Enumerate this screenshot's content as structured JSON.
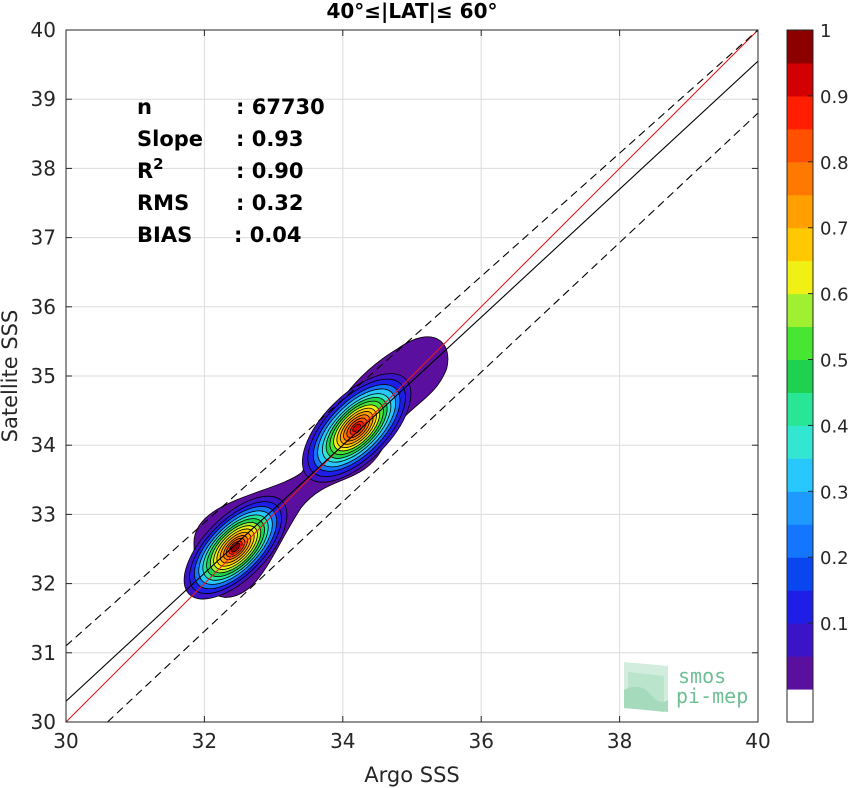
{
  "chart_data": {
    "type": "contour-density-scatter",
    "title": "40°≤|LAT|≤ 60°",
    "xlabel": "Argo SSS",
    "ylabel": "Satellite SSS",
    "xlim": [
      30,
      40
    ],
    "ylim": [
      30,
      40
    ],
    "xticks": [
      "30",
      "32",
      "34",
      "36",
      "38",
      "40"
    ],
    "yticks": [
      "30",
      "31",
      "32",
      "33",
      "34",
      "35",
      "36",
      "37",
      "38",
      "39",
      "40"
    ],
    "grid": true,
    "stats": [
      {
        "label": "n",
        "value": ": 67730"
      },
      {
        "label": "Slope",
        "value": ": 0.93"
      },
      {
        "label": "R",
        "sup": "2",
        "value": ": 0.90"
      },
      {
        "label": "RMS",
        "value": ": 0.32"
      },
      {
        "label": "BIAS",
        "value": ": 0.04"
      }
    ],
    "lines": [
      {
        "name": "one-to-one",
        "color": "#e41a1c",
        "style": "solid",
        "x": [
          30,
          40
        ],
        "y": [
          30,
          40
        ]
      },
      {
        "name": "regression",
        "color": "#000000",
        "style": "solid",
        "x": [
          30,
          40
        ],
        "y": [
          30.3,
          39.55
        ]
      },
      {
        "name": "upper-bound",
        "color": "#000000",
        "style": "dashed",
        "x": [
          30,
          40
        ],
        "y": [
          31.1,
          40.0
        ]
      },
      {
        "name": "lower-bound",
        "color": "#000000",
        "style": "dashed",
        "x": [
          30.6,
          40
        ],
        "y": [
          30.0,
          38.8
        ]
      }
    ],
    "density_peaks": [
      {
        "x": 32.45,
        "y": 32.52,
        "value": 1.0
      },
      {
        "x": 34.2,
        "y": 34.25,
        "value": 0.9
      }
    ],
    "colorbar": {
      "min": 0,
      "max": 1,
      "ticks": [
        "0.1",
        "0.2",
        "0.3",
        "0.4",
        "0.5",
        "0.6",
        "0.7",
        "0.8",
        "0.9",
        "1"
      ],
      "levels": [
        "#ffffff",
        "#5a0f9e",
        "#3c14c8",
        "#1e1ee6",
        "#0a46f0",
        "#1476ff",
        "#1e9aff",
        "#28c8ff",
        "#32e6d2",
        "#28e696",
        "#1ed250",
        "#46e632",
        "#a0f032",
        "#f0f014",
        "#ffc800",
        "#ffa000",
        "#ff7800",
        "#ff5000",
        "#ff1e00",
        "#d20000",
        "#8c0000"
      ]
    },
    "watermark": {
      "line1": "smos",
      "line2": "pi-mep"
    }
  }
}
